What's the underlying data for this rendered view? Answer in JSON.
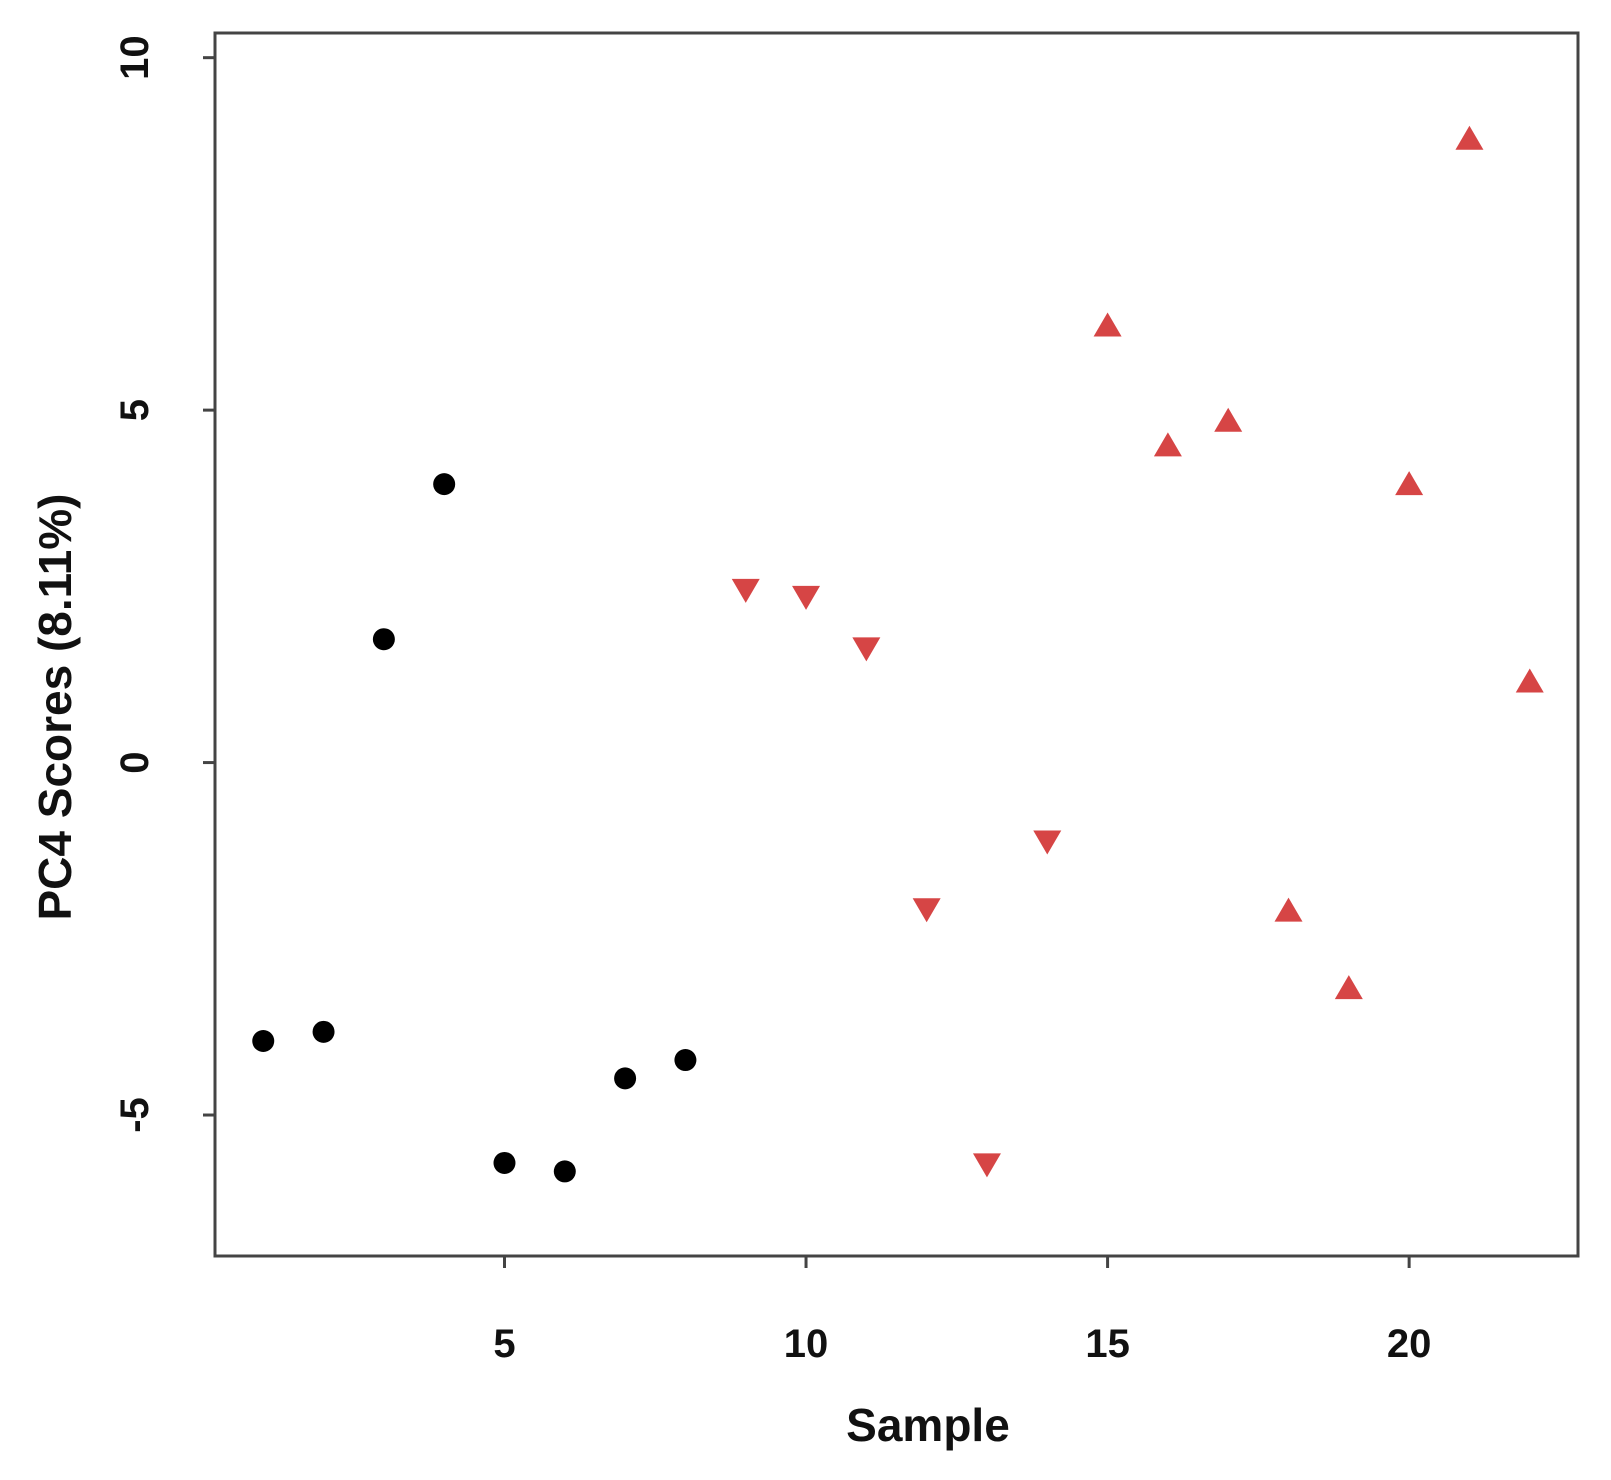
{
  "chart_data": {
    "type": "scatter",
    "title": "",
    "xlabel": "Sample",
    "ylabel": "PC4 Scores (8.11%)",
    "xlim": [
      0.2,
      22.8
    ],
    "ylim": [
      -7,
      10.35
    ],
    "x_ticks": [
      5,
      10,
      15,
      20
    ],
    "y_ticks": [
      -5,
      0,
      5,
      10
    ],
    "grid": false,
    "legend": "none",
    "series": [
      {
        "marker": "circle",
        "color": "#000000",
        "points": [
          {
            "x": 1,
            "y": -3.95
          },
          {
            "x": 2,
            "y": -3.82
          },
          {
            "x": 3,
            "y": 1.75
          },
          {
            "x": 4,
            "y": 3.95
          },
          {
            "x": 5,
            "y": -5.68
          },
          {
            "x": 6,
            "y": -5.8
          },
          {
            "x": 7,
            "y": -4.48
          },
          {
            "x": 8,
            "y": -4.22
          }
        ]
      },
      {
        "marker": "triangle-down",
        "color": "#d64545",
        "points": [
          {
            "x": 9,
            "y": 2.45
          },
          {
            "x": 10,
            "y": 2.35
          },
          {
            "x": 11,
            "y": 1.62
          },
          {
            "x": 12,
            "y": -2.08
          },
          {
            "x": 13,
            "y": -5.7
          },
          {
            "x": 14,
            "y": -1.12
          }
        ]
      },
      {
        "marker": "triangle-up",
        "color": "#d64545",
        "points": [
          {
            "x": 15,
            "y": 6.2
          },
          {
            "x": 16,
            "y": 4.5
          },
          {
            "x": 17,
            "y": 4.85
          },
          {
            "x": 18,
            "y": -2.1
          },
          {
            "x": 19,
            "y": -3.2
          },
          {
            "x": 20,
            "y": 3.95
          },
          {
            "x": 21,
            "y": 8.85
          },
          {
            "x": 22,
            "y": 1.15
          }
        ]
      }
    ]
  }
}
